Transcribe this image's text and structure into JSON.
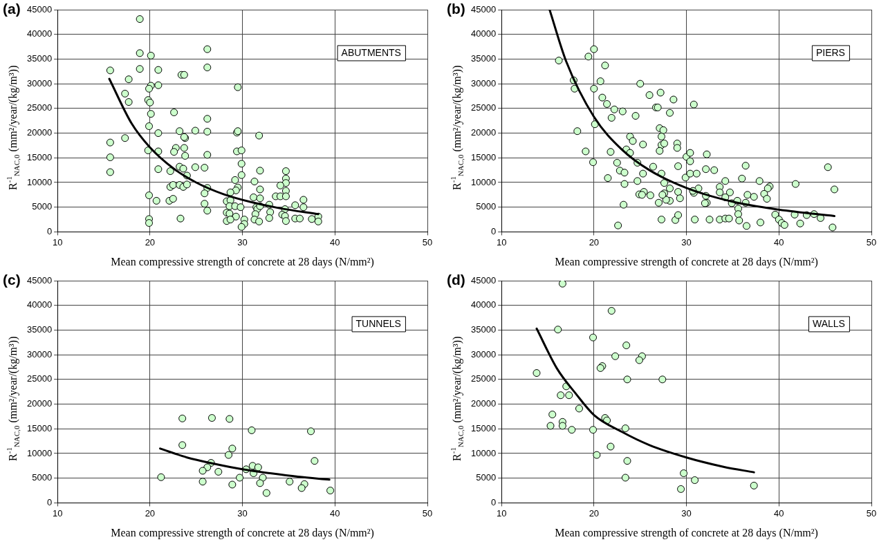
{
  "chart_data": [
    {
      "type": "scatter",
      "title": "(a)",
      "xlabel": "Mean compressive strength of concrete at 28 days (N/mm²)",
      "ylabel": "R$^{-1}$$_{NAC,0}$ (mm²/year/(kg/m³))",
      "annotations": [
        "ABUTMENTS"
      ],
      "xlim": [
        10,
        50
      ],
      "xticks": [
        10,
        20,
        30,
        40,
        50
      ],
      "ylim": [
        0,
        45000
      ],
      "yticks": [
        0,
        5000,
        10000,
        15000,
        20000,
        25000,
        30000,
        35000,
        40000,
        45000
      ],
      "grid": true,
      "marker": "circle",
      "series": [
        {
          "type": "scatter",
          "color": "#ccffcc",
          "x": [
            18.9,
            18.9,
            20.1,
            15.7,
            18.9,
            20.9,
            17.7,
            23.4,
            23.7,
            26.2,
            26.2,
            20.9,
            20.1,
            19.9,
            29.5,
            17.3,
            19.8,
            20.0,
            17.7,
            20.1,
            22.6,
            26.2,
            19.9,
            17.3,
            15.7,
            20.9,
            23.2,
            24.9,
            26.2,
            29.4,
            29.5,
            31.8,
            23.8,
            23.7,
            15.7,
            19.8,
            20.9,
            22.8,
            22.6,
            23.7,
            23.8,
            26.2,
            29.4,
            29.9,
            15.7,
            20.9,
            22.2,
            23.2,
            23.6,
            24.9,
            25.9,
            24.0,
            29.9,
            31.9,
            22.2,
            22.5,
            23.2,
            23.6,
            24.0,
            26.2,
            25.9,
            29.2,
            29.9,
            29.5,
            29.3,
            31.3,
            31.9,
            34.7,
            34.7,
            34.7,
            34.1,
            34.7,
            33.6,
            34.1,
            34.7,
            19.9,
            20.7,
            22.1,
            22.5,
            25.9,
            26.2,
            28.7,
            28.3,
            28.7,
            28.6,
            29.2,
            29.8,
            28.3,
            28.6,
            29.3,
            28.3,
            28.7,
            30.2,
            30.2,
            29.9,
            31.2,
            31.9,
            31.5,
            31.6,
            31.9,
            31.4,
            31.3,
            31.8,
            32.9,
            33.0,
            32.9,
            34.6,
            34.3,
            34.6,
            34.7,
            35.7,
            36.6,
            36.6,
            35.7,
            36.2,
            37.5,
            38.2,
            38.2,
            19.9,
            19.9,
            23.3
          ],
          "values": [
            43100,
            36200,
            35700,
            32700,
            33000,
            32800,
            30900,
            31800,
            31800,
            37000,
            33300,
            29700,
            29600,
            29000,
            29300,
            28000,
            26700,
            26200,
            26300,
            23900,
            24200,
            22900,
            21400,
            19000,
            18100,
            20000,
            20400,
            20500,
            20300,
            20100,
            20400,
            19500,
            19000,
            19200,
            15100,
            16500,
            16300,
            17000,
            16200,
            17000,
            15400,
            15600,
            16300,
            16500,
            12100,
            12700,
            12300,
            13200,
            12800,
            13100,
            13000,
            11400,
            13800,
            12400,
            9100,
            9500,
            9500,
            9100,
            9600,
            8900,
            7800,
            10500,
            11500,
            9000,
            8400,
            10200,
            8600,
            12300,
            10800,
            9900,
            9400,
            8300,
            7200,
            7200,
            7200,
            7400,
            6300,
            6300,
            6700,
            5700,
            4300,
            8000,
            6200,
            6400,
            5200,
            5200,
            5000,
            3900,
            3700,
            3100,
            2200,
            2500,
            2500,
            1600,
            1000,
            7000,
            6800,
            5000,
            4600,
            5200,
            3600,
            2500,
            2100,
            5500,
            4000,
            2800,
            4600,
            3500,
            3200,
            2200,
            5400,
            5000,
            6500,
            2700,
            2700,
            2600,
            3100,
            2100,
            2600,
            1800,
            2700
          ]
        },
        {
          "type": "line",
          "marker": "none",
          "color": "#000000",
          "x": [
            15.6,
            18,
            20,
            22.5,
            25,
            28,
            31,
            34,
            38.2
          ],
          "values": [
            31000,
            22000,
            17100,
            12900,
            10000,
            7600,
            6000,
            4800,
            3600
          ]
        }
      ]
    },
    {
      "type": "scatter",
      "title": "(b)",
      "xlabel": "Mean compressive strength of concrete at 28 days (N/mm²)",
      "ylabel": "R$^{-1}$$_{NAC,0}$ (mm²/year/(kg/m³))",
      "annotations": [
        "PIERS"
      ],
      "xlim": [
        10,
        50
      ],
      "xticks": [
        10,
        20,
        30,
        40,
        50
      ],
      "ylim": [
        0,
        45000
      ],
      "yticks": [
        0,
        5000,
        10000,
        15000,
        20000,
        25000,
        30000,
        35000,
        40000,
        45000
      ],
      "grid": true,
      "marker": "circle",
      "series": [
        {
          "type": "scatter",
          "color": "#ccffcc",
          "x": [
            16.2,
            17.8,
            17.9,
            19.4,
            20.0,
            21.2,
            20.7,
            20.0,
            18.2,
            19.1,
            19.9,
            20.9,
            21.4,
            22.2,
            23.1,
            21.9,
            20.1,
            25.0,
            26.0,
            27.2,
            28.6,
            30.8,
            26.7,
            26.9,
            28.2,
            24.5,
            27.1,
            27.5,
            27.3,
            23.9,
            24.2,
            25.3,
            27.3,
            27.6,
            29.0,
            29.0,
            21.8,
            23.5,
            23.9,
            27.1,
            30.0,
            30.4,
            30.4,
            32.2,
            29.1,
            24.7,
            22.5,
            26.4,
            22.8,
            23.3,
            21.5,
            23.3,
            24.7,
            25.3,
            27.3,
            27.6,
            29.9,
            30.4,
            31.1,
            32.1,
            33.0,
            36.4,
            36.0,
            34.2,
            37.9,
            39.0,
            38.8,
            38.4,
            38.7,
            36.6,
            37.3,
            33.6,
            33.6,
            34.7,
            34.2,
            34.9,
            35.6,
            35.6,
            36.4,
            35.5,
            32.1,
            32.2,
            32.0,
            31.3,
            30.8,
            30.7,
            29.1,
            29.3,
            28.2,
            28.2,
            27.6,
            27.8,
            27.4,
            27.0,
            26.1,
            24.9,
            25.4,
            25.2,
            23.2,
            22.6,
            27.3,
            28.8,
            29.1,
            30.9,
            32.5,
            33.6,
            34.2,
            34.6,
            35.7,
            36.5,
            38.0,
            39.6,
            40.0,
            40.3,
            40.6,
            41.8,
            41.7,
            42.3,
            43.0,
            43.8,
            44.5,
            45.3,
            46.0,
            45.8
          ],
          "values": [
            34700,
            30700,
            29000,
            35500,
            37000,
            33700,
            30500,
            29000,
            20400,
            16300,
            14100,
            27200,
            25900,
            24800,
            24400,
            23100,
            21800,
            30000,
            27700,
            28200,
            26800,
            25800,
            25200,
            25200,
            24100,
            23500,
            21000,
            20600,
            19300,
            19300,
            18400,
            17700,
            17600,
            17900,
            17900,
            17000,
            16200,
            16700,
            16000,
            16400,
            15200,
            16000,
            14300,
            15700,
            13300,
            14000,
            14000,
            13200,
            12400,
            12000,
            10900,
            9700,
            10300,
            11800,
            11800,
            9900,
            11000,
            11800,
            11800,
            12700,
            12500,
            13400,
            10800,
            10300,
            10300,
            9200,
            8800,
            7700,
            6700,
            7500,
            7100,
            9100,
            8000,
            8000,
            7000,
            5800,
            4700,
            3600,
            5900,
            6300,
            7300,
            5900,
            5800,
            8800,
            7900,
            8300,
            8100,
            6800,
            8800,
            6300,
            7800,
            6500,
            7500,
            5900,
            7400,
            7600,
            8100,
            7500,
            5500,
            1300,
            2500,
            2400,
            3400,
            2500,
            2500,
            2500,
            2700,
            2700,
            2300,
            1200,
            1900,
            3500,
            2500,
            1800,
            1400,
            9700,
            3500,
            1700,
            3400,
            3600,
            2800,
            13100,
            8600,
            900
          ]
        },
        {
          "type": "line",
          "marker": "none",
          "color": "#000000",
          "x": [
            15.2,
            17,
            20,
            23,
            26,
            30,
            35,
            40,
            46
          ],
          "values": [
            45000,
            34500,
            23300,
            16700,
            12500,
            8900,
            6100,
            4500,
            3200
          ]
        }
      ]
    },
    {
      "type": "scatter",
      "title": "(c)",
      "xlabel": "Mean compressive strength of concrete at 28 days (N/mm²)",
      "ylabel": "R$^{-1}$$_{NAC,0}$ (mm²/year/(kg/m³))",
      "annotations": [
        "TUNNELS"
      ],
      "xlim": [
        10,
        50
      ],
      "xticks": [
        10,
        20,
        30,
        40,
        50
      ],
      "ylim": [
        0,
        45000
      ],
      "yticks": [
        0,
        5000,
        10000,
        15000,
        20000,
        25000,
        30000,
        35000,
        40000,
        45000
      ],
      "grid": true,
      "marker": "circle",
      "series": [
        {
          "type": "scatter",
          "color": "#ccffcc",
          "x": [
            21.2,
            23.5,
            23.5,
            26.7,
            28.6,
            31.0,
            37.4,
            37.8,
            28.9,
            28.5,
            26.6,
            26.2,
            25.7,
            27.4,
            25.7,
            28.9,
            29.7,
            30.4,
            31.1,
            31.7,
            31.2,
            32.2,
            31.9,
            32.6,
            35.1,
            36.7,
            36.4,
            39.5
          ],
          "values": [
            5200,
            17100,
            11700,
            17200,
            17000,
            14700,
            14500,
            8500,
            11000,
            9700,
            8100,
            7200,
            6500,
            6300,
            4300,
            3700,
            5100,
            6800,
            7500,
            7200,
            6000,
            5100,
            4000,
            2000,
            4300,
            3800,
            3000,
            2500
          ]
        },
        {
          "type": "line",
          "marker": "none",
          "color": "#000000",
          "x": [
            21.1,
            24,
            27,
            30,
            33,
            36,
            39.4
          ],
          "values": [
            11000,
            9200,
            7900,
            6800,
            6000,
            5300,
            4700
          ]
        }
      ]
    },
    {
      "type": "scatter",
      "title": "(d)",
      "xlabel": "Mean compressive strength of concrete at 28 days (N/mm²)",
      "ylabel": "R$^{-1}$$_{NAC,0}$ (mm²/year/(kg/m³))",
      "annotations": [
        "WALLS"
      ],
      "xlim": [
        10,
        50
      ],
      "xticks": [
        10,
        20,
        30,
        40,
        50
      ],
      "ylim": [
        0,
        45000
      ],
      "yticks": [
        0,
        5000,
        10000,
        15000,
        20000,
        25000,
        30000,
        35000,
        40000,
        45000
      ],
      "grid": true,
      "marker": "circle",
      "series": [
        {
          "type": "scatter",
          "color": "#ccffcc",
          "x": [
            16.6,
            16.1,
            13.8,
            19.9,
            21.9,
            23.5,
            22.3,
            25.2,
            24.9,
            20.9,
            20.7,
            23.6,
            27.4,
            17.0,
            16.4,
            17.3,
            18.4,
            15.5,
            15.3,
            16.6,
            16.6,
            17.6,
            19.9,
            21.2,
            21.4,
            23.4,
            20.3,
            21.8,
            23.6,
            23.4,
            29.7,
            29.4,
            30.9,
            37.3
          ],
          "values": [
            44400,
            35100,
            26300,
            33500,
            38900,
            31900,
            29700,
            29700,
            28900,
            27700,
            27300,
            25000,
            25000,
            23600,
            21800,
            21800,
            19100,
            17900,
            15600,
            16400,
            15600,
            14800,
            14800,
            17200,
            16700,
            15100,
            9700,
            11400,
            8500,
            5100,
            6000,
            2800,
            4600,
            3500
          ]
        },
        {
          "type": "line",
          "marker": "none",
          "color": "#000000",
          "x": [
            13.8,
            16,
            18,
            20,
            23,
            26,
            30,
            34,
            37.3
          ],
          "values": [
            35300,
            27200,
            22200,
            17800,
            14400,
            11700,
            9200,
            7300,
            6200
          ]
        }
      ]
    }
  ]
}
